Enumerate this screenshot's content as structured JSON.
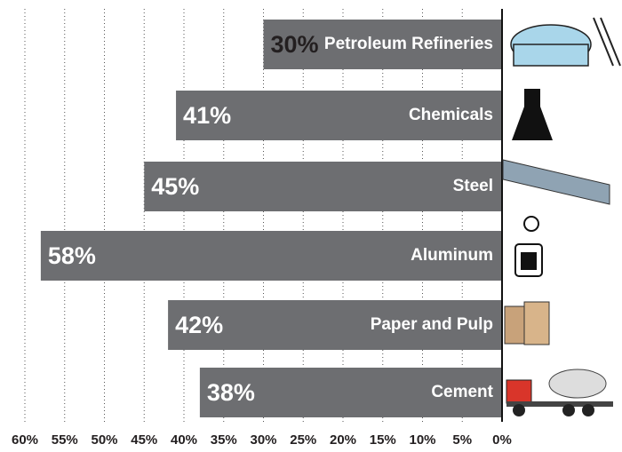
{
  "chart_data": {
    "type": "hbar",
    "categories": [
      "Petroleum Refineries",
      "Chemicals",
      "Steel",
      "Aluminum",
      "Paper and Pulp",
      "Cement"
    ],
    "values": [
      30,
      41,
      45,
      58,
      42,
      38
    ],
    "value_labels": [
      "30%",
      "41%",
      "45%",
      "58%",
      "42%",
      "38%"
    ],
    "value_label_colors": [
      "#231f20",
      "#ffffff",
      "#ffffff",
      "#ffffff",
      "#ffffff",
      "#ffffff"
    ],
    "color": "#6d6e71",
    "xlim": [
      0,
      60
    ],
    "xticks": [
      {
        "value": 60,
        "label": "60%"
      },
      {
        "value": 55,
        "label": "55%"
      },
      {
        "value": 50,
        "label": "50%"
      },
      {
        "value": 45,
        "label": "45%"
      },
      {
        "value": 40,
        "label": "40%"
      },
      {
        "value": 35,
        "label": "35%"
      },
      {
        "value": 30,
        "label": "30%"
      },
      {
        "value": 25,
        "label": "25%"
      },
      {
        "value": 20,
        "label": "20%"
      },
      {
        "value": 15,
        "label": "15%"
      },
      {
        "value": 10,
        "label": "10%"
      },
      {
        "value": 5,
        "label": "5%"
      },
      {
        "value": 0,
        "label": "0%"
      }
    ],
    "grid": true
  }
}
